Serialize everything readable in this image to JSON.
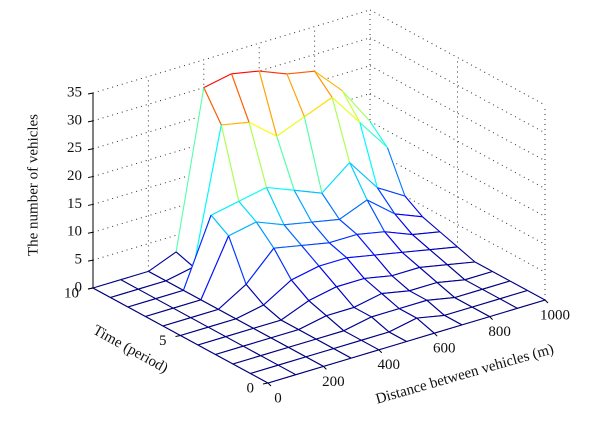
{
  "chart_data": {
    "type": "mesh",
    "x_label": "Distance between vehicles (m)",
    "y_label": "Time (period)",
    "z_label": "The number of vehicles",
    "x": [
      0,
      100,
      200,
      300,
      400,
      500,
      600,
      700,
      800,
      900,
      1000
    ],
    "y": [
      0,
      1,
      2,
      3,
      4,
      5,
      6,
      7,
      8,
      9,
      10
    ],
    "z": [
      [
        0,
        0,
        0,
        0,
        0,
        0,
        0,
        0,
        0,
        0,
        0
      ],
      [
        0,
        0,
        0,
        0,
        0,
        0,
        1,
        0,
        0,
        0,
        0
      ],
      [
        0,
        0,
        0,
        0,
        0,
        1,
        1,
        1,
        0,
        0,
        0
      ],
      [
        0,
        0,
        0,
        0,
        1,
        1,
        2,
        1,
        1,
        0,
        0
      ],
      [
        0,
        0,
        0,
        0,
        2,
        3,
        3,
        2,
        2,
        1,
        0
      ],
      [
        0,
        0,
        0,
        1,
        4,
        5,
        5,
        4,
        3,
        2,
        1
      ],
      [
        0,
        0,
        0,
        3,
        8,
        7,
        6,
        6,
        5,
        3,
        2
      ],
      [
        0,
        0,
        0,
        10,
        11,
        9,
        8,
        7,
        9,
        5,
        3
      ],
      [
        0,
        0,
        0,
        12,
        13,
        14,
        12,
        10,
        14,
        8,
        5
      ],
      [
        0,
        0,
        0,
        1,
        25,
        24,
        20,
        22,
        24,
        18,
        12
      ],
      [
        0,
        0,
        0,
        2,
        30,
        31,
        30,
        28,
        27,
        22,
        15
      ]
    ],
    "xlim": [
      0,
      1000
    ],
    "xticks": [
      0,
      200,
      400,
      600,
      800,
      1000
    ],
    "ylim": [
      0,
      10
    ],
    "yticks": [
      0,
      5,
      10
    ],
    "zlim": [
      0,
      35
    ],
    "zticks": [
      0,
      5,
      10,
      15,
      20,
      25,
      30,
      35
    ],
    "grid": true,
    "colormap": "jet"
  }
}
